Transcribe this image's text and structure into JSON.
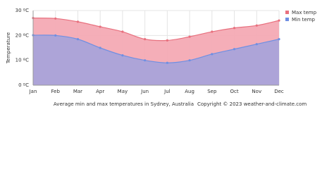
{
  "chart_data": {
    "type": "area",
    "y_label": "Temperature",
    "caption": "Average min and max temperatures in Sydney, Australia",
    "copyright": "Copyright © 2023  weather-and-climate.com",
    "categories": [
      "Jan",
      "Feb",
      "Mar",
      "Apr",
      "May",
      "Jun",
      "Jul",
      "Aug",
      "Sep",
      "Oct",
      "Nov",
      "Dec"
    ],
    "series": [
      {
        "name": "Max temp",
        "color": "#e8707e",
        "fill": "#f4aab4",
        "values": [
          27,
          26.8,
          25.5,
          23.5,
          21.5,
          18.5,
          18,
          19.5,
          21.5,
          23,
          24,
          26
        ]
      },
      {
        "name": "Min temp",
        "color": "#6f8fe2",
        "fill": "#a9a3d9",
        "values": [
          20.1,
          20,
          18.5,
          15,
          12,
          10,
          9,
          10,
          12.5,
          14.5,
          16.5,
          18.5
        ]
      }
    ],
    "ylim": [
      0,
      30
    ],
    "yticks": [
      {
        "value": 0,
        "label": "0 ºC"
      },
      {
        "value": 10,
        "label": "10 ºC"
      },
      {
        "value": 20,
        "label": "20 ºC"
      },
      {
        "value": 30,
        "label": "30 ºC"
      }
    ],
    "grid": true,
    "legend": "top-right"
  }
}
